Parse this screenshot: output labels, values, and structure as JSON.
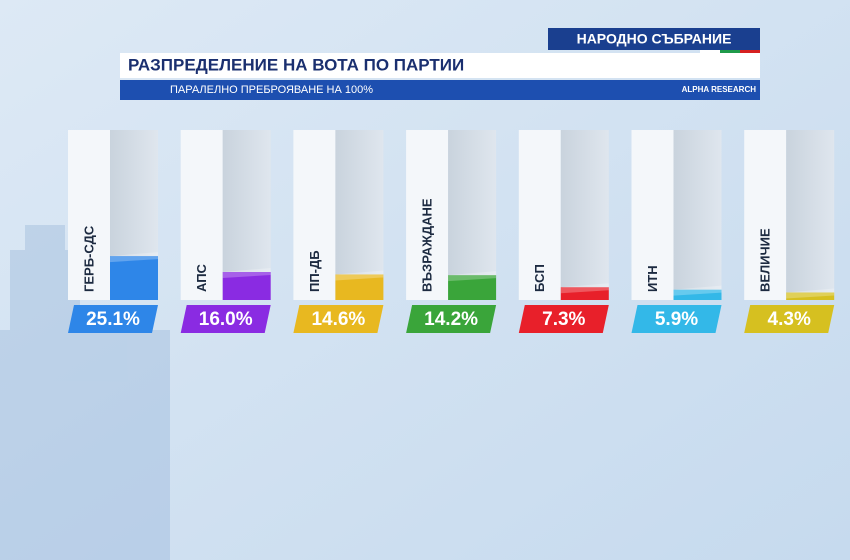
{
  "chart_data": {
    "type": "bar",
    "header": "НАРОДНО СЪБРАНИЕ",
    "title": "РАЗПРЕДЕЛЕНИЕ НА ВОТА ПО ПАРТИИ",
    "subtitle": "ПАРАЛЕЛНО ПРЕБРОЯВАНЕ НА 100%",
    "source": "ALPHA RESEARCH",
    "categories": [
      "ГЕРБ-СДС",
      "АПС",
      "ПП-ДБ",
      "ВЪЗРАЖДАНЕ",
      "БСП",
      "ИТН",
      "ВЕЛИЧИЕ"
    ],
    "values": [
      25.1,
      16.0,
      14.6,
      14.2,
      7.3,
      5.9,
      4.3
    ],
    "value_labels": [
      "25.1%",
      "16.0%",
      "14.6%",
      "14.2%",
      "7.3%",
      "5.9%",
      "4.3%"
    ],
    "colors": [
      "#2e86e8",
      "#8a2be2",
      "#e8b820",
      "#3aa53a",
      "#e8202a",
      "#33b8e8",
      "#d6c020"
    ]
  }
}
